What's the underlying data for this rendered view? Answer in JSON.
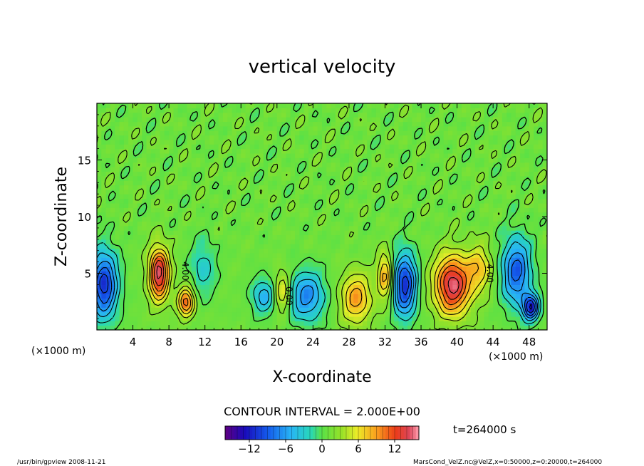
{
  "chart_data": {
    "type": "heatmap",
    "title": "vertical velocity",
    "xlabel": "X-coordinate",
    "ylabel": "Z-coordinate",
    "x_unit_left": "(×1000 m)",
    "x_unit_right": "(×1000 m)",
    "xlim": [
      0,
      50
    ],
    "ylim": [
      0,
      20
    ],
    "x_ticks": [
      4,
      8,
      12,
      16,
      20,
      24,
      28,
      32,
      36,
      40,
      44,
      48
    ],
    "y_ticks": [
      5,
      10,
      15
    ],
    "contour_interval_text": "CONTOUR INTERVAL = 2.000E+00",
    "contour_labels": [
      {
        "text": "4.00",
        "x": 9.5,
        "z": 5.2
      },
      {
        "text": "4.00",
        "x": 43.3,
        "z": 5.0
      },
      {
        "text": "0.00",
        "x": 21.0,
        "z": 3.0
      }
    ],
    "features": [
      {
        "x": 0.8,
        "z": 4.0,
        "value": -12,
        "sx": 1.5,
        "sz": 3.0
      },
      {
        "x": 6.9,
        "z": 5.0,
        "value": 14,
        "sx": 1.1,
        "sz": 2.3
      },
      {
        "x": 9.9,
        "z": 2.5,
        "value": 10,
        "sx": 0.9,
        "sz": 1.3
      },
      {
        "x": 11.8,
        "z": 5.5,
        "value": -4,
        "sx": 1.4,
        "sz": 2.5
      },
      {
        "x": 18.5,
        "z": 3.0,
        "value": -6,
        "sx": 1.3,
        "sz": 1.6
      },
      {
        "x": 20.6,
        "z": 3.4,
        "value": 6,
        "sx": 0.9,
        "sz": 1.8
      },
      {
        "x": 23.3,
        "z": 3.0,
        "value": -8,
        "sx": 2.0,
        "sz": 2.2
      },
      {
        "x": 28.8,
        "z": 2.8,
        "value": 8,
        "sx": 1.7,
        "sz": 2.2
      },
      {
        "x": 32.0,
        "z": 4.8,
        "value": 8,
        "sx": 0.8,
        "sz": 2.0
      },
      {
        "x": 34.2,
        "z": 4.0,
        "value": -12,
        "sx": 1.3,
        "sz": 2.8
      },
      {
        "x": 39.5,
        "z": 4.0,
        "value": 14,
        "sx": 2.0,
        "sz": 2.6
      },
      {
        "x": 42.5,
        "z": 5.5,
        "value": 6,
        "sx": 1.3,
        "sz": 2.0
      },
      {
        "x": 46.6,
        "z": 5.2,
        "value": -10,
        "sx": 1.6,
        "sz": 3.0
      },
      {
        "x": 48.2,
        "z": 2.0,
        "value": -12,
        "sx": 0.9,
        "sz": 1.2
      }
    ],
    "colorbar": {
      "vmin": -16,
      "vmax": 16,
      "ticks": [
        -12,
        -6,
        0,
        6,
        12
      ],
      "tick_labels": [
        "−12",
        "−6",
        "0",
        "6",
        "12"
      ]
    },
    "time_label": "t=264000 s",
    "footer_left": "/usr/bin/gpview  2008-11-21",
    "footer_right": "MarsCond_VelZ.nc@VelZ,x=0:50000,z=0:20000,t=264000"
  },
  "colors": {
    "background": "#ffffff",
    "axis": "#000000",
    "contour": "#000000"
  }
}
